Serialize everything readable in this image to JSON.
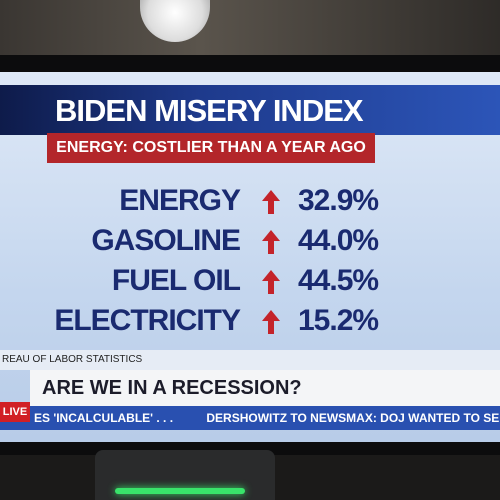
{
  "header": {
    "title": "BIDEN MISERY INDEX",
    "subtitle": "ENERGY: COSTLIER THAN A YEAR AGO"
  },
  "table": {
    "rows": [
      [
        "ENERGY",
        "32.9%"
      ],
      [
        "GASOLINE",
        "44.0%"
      ],
      [
        "FUEL OIL",
        "44.5%"
      ],
      [
        "ELECTRICITY",
        "15.2%"
      ]
    ]
  },
  "source": "REAU OF LABOR STATISTICS",
  "lower_third": "ARE WE IN A RECESSION?",
  "ticker": {
    "live": "LIVE",
    "items": [
      "ES 'INCALCULABLE' . . .",
      "DERSHOWITZ TO NEWSMAX: DOJ WANTED TO SEIZE JAN."
    ]
  }
}
